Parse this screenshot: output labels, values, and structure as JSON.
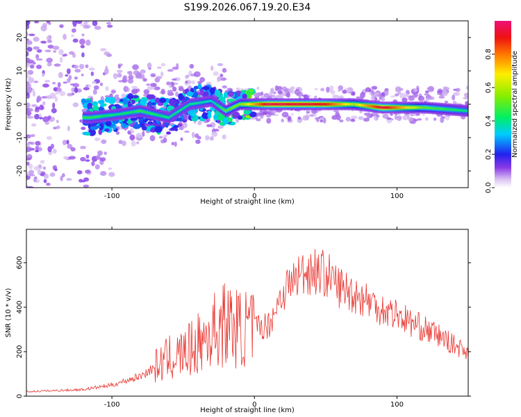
{
  "title": "S199.2026.067.19.20.E34",
  "chart_data": [
    {
      "type": "heatmap",
      "xlabel": "Height of straight line (km)",
      "ylabel": "Frequency (Hz)",
      "xlim": [
        -160,
        150
      ],
      "ylim": [
        -25,
        25
      ],
      "xticks": [
        -100,
        0,
        100
      ],
      "xtick_labels": [
        "-100",
        "0",
        "100"
      ],
      "yticks": [
        -20,
        -10,
        0,
        10,
        20
      ],
      "ytick_labels": [
        "-20",
        "-10",
        "0",
        "10",
        "20"
      ],
      "colorbar": {
        "label": "Normalized spectral amplitude",
        "ticks": [
          0.0,
          0.2,
          0.4,
          0.6,
          0.8
        ],
        "tick_labels": [
          "0.0",
          "0.2",
          "0.4",
          "0.6",
          "0.8"
        ],
        "range": [
          0,
          1
        ]
      },
      "ridge": [
        {
          "x": -115,
          "freq": -4,
          "amp": 0.45
        },
        {
          "x": -95,
          "freq": -3,
          "amp": 0.4
        },
        {
          "x": -80,
          "freq": -2,
          "amp": 0.45
        },
        {
          "x": -60,
          "freq": -4,
          "amp": 0.4
        },
        {
          "x": -45,
          "freq": 0,
          "amp": 0.4
        },
        {
          "x": -30,
          "freq": 1,
          "amp": 0.35
        },
        {
          "x": -20,
          "freq": -2,
          "amp": 0.5
        },
        {
          "x": -10,
          "freq": 0,
          "amp": 0.55
        },
        {
          "x": 10,
          "freq": 0,
          "amp": 0.95
        },
        {
          "x": 50,
          "freq": 0,
          "amp": 0.9
        },
        {
          "x": 70,
          "freq": 0,
          "amp": 0.6
        },
        {
          "x": 90,
          "freq": -1,
          "amp": 0.95
        },
        {
          "x": 120,
          "freq": -1,
          "amp": 0.5
        },
        {
          "x": 150,
          "freq": -2,
          "amp": 0.4
        }
      ]
    },
    {
      "type": "line",
      "xlabel": "Height of straight line (km)",
      "ylabel": "SNR (10 * v/v)",
      "xlim": [
        -160,
        150
      ],
      "ylim": [
        0,
        750
      ],
      "xticks": [
        -100,
        0,
        100
      ],
      "xtick_labels": [
        "-100",
        "0",
        "100"
      ],
      "yticks": [
        0,
        200,
        400,
        600
      ],
      "ytick_labels": [
        "0",
        "200",
        "400",
        "600"
      ],
      "series": [
        {
          "name": "SNR",
          "color": "#e8322c",
          "x": [
            -160,
            -140,
            -120,
            -100,
            -90,
            -80,
            -70,
            -60,
            -50,
            -40,
            -30,
            -20,
            -10,
            0,
            10,
            20,
            30,
            40,
            50,
            60,
            70,
            80,
            90,
            100,
            110,
            120,
            130,
            140,
            150
          ],
          "values": [
            20,
            25,
            30,
            50,
            70,
            90,
            130,
            170,
            190,
            230,
            290,
            330,
            300,
            310,
            320,
            470,
            540,
            570,
            550,
            490,
            460,
            430,
            390,
            370,
            330,
            300,
            270,
            230,
            200
          ]
        }
      ]
    }
  ]
}
